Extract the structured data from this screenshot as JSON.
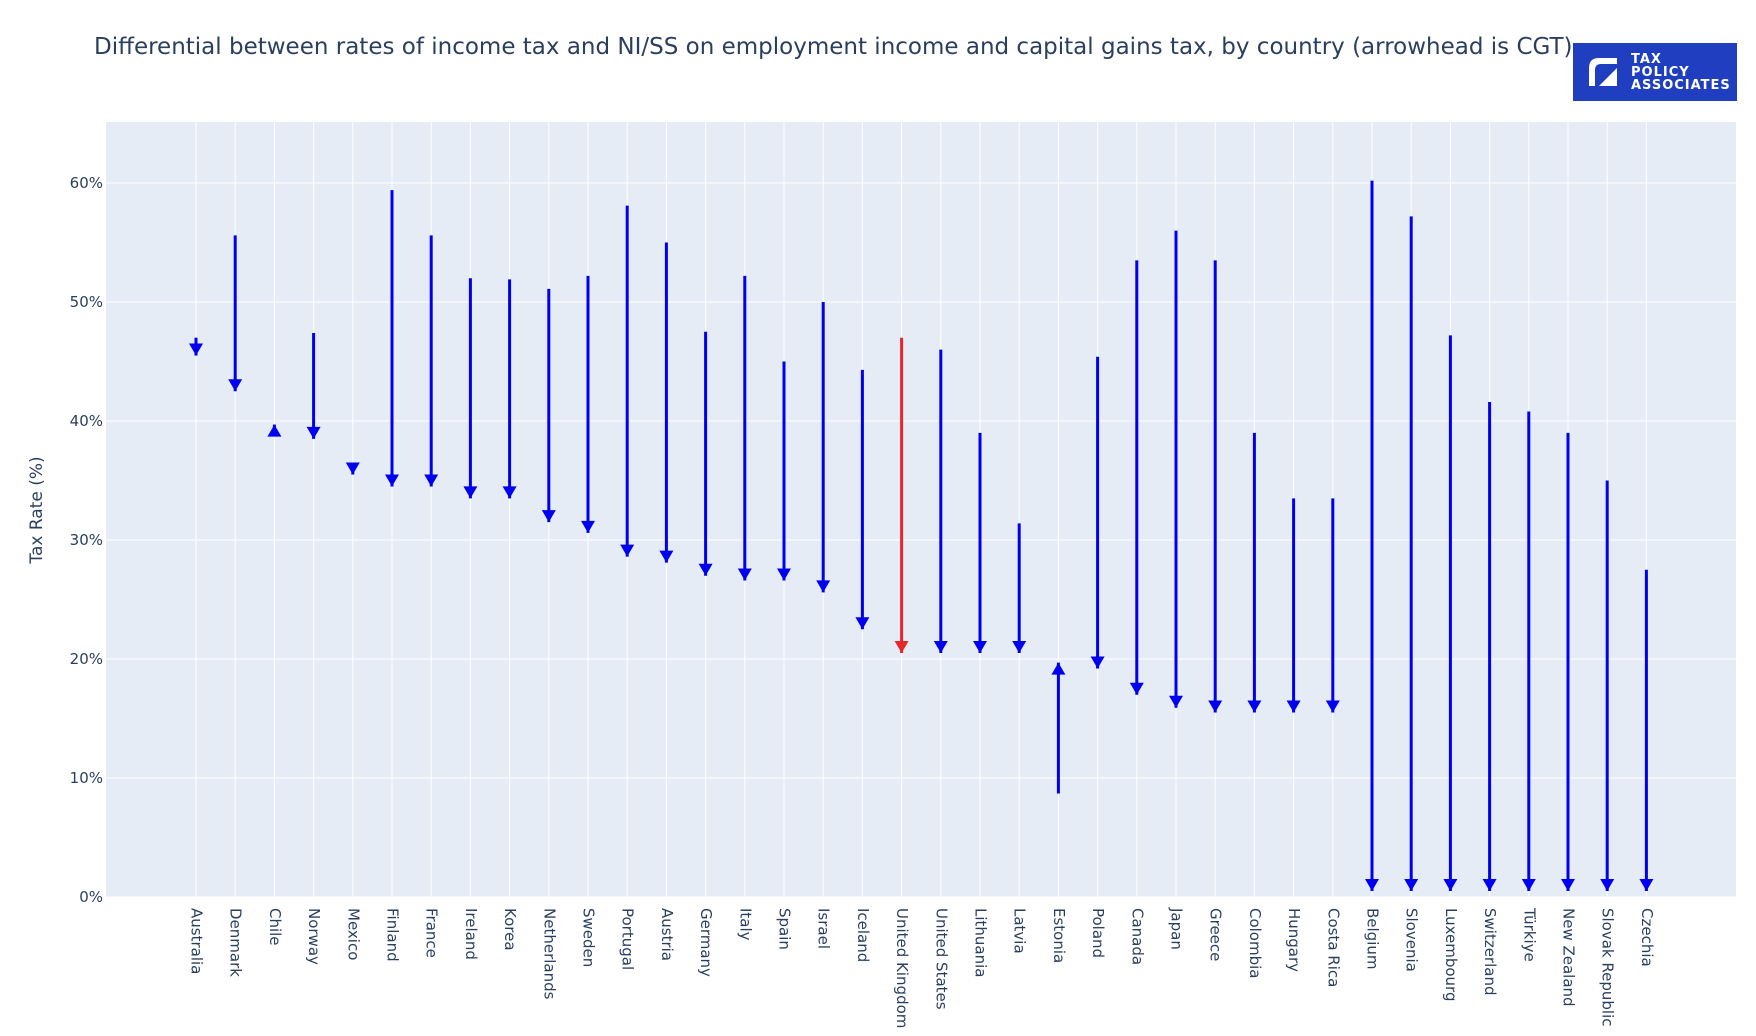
{
  "header": {
    "title": "Differential between rates of income tax and NI/SS on employment income and capital gains tax, by country (arrowhead is CGT)",
    "logo": {
      "line1": "TAX",
      "line2": "POLICY",
      "line3": "ASSOCIATES",
      "bg_color": "#1f3fc0"
    }
  },
  "chart_data": {
    "type": "arrow",
    "ylabel": "Tax Rate (%)",
    "ylim": [
      0,
      65
    ],
    "yticks": [
      0,
      10,
      20,
      30,
      40,
      50,
      60
    ],
    "ytick_labels": [
      "0%",
      "10%",
      "20%",
      "30%",
      "40%",
      "50%",
      "60%"
    ],
    "grid": true,
    "colors": {
      "default": "#0000ee",
      "highlight": "#e8262a",
      "plot_bg": "#e5ecf6",
      "grid": "#ffffff"
    },
    "points": [
      {
        "country": "Australia",
        "income": 47.0,
        "cgt": 45.5,
        "highlight": false
      },
      {
        "country": "Denmark",
        "income": 55.6,
        "cgt": 42.5,
        "highlight": false
      },
      {
        "country": "Chile",
        "income": 39.0,
        "cgt": 39.7,
        "highlight": false
      },
      {
        "country": "Norway",
        "income": 47.4,
        "cgt": 38.5,
        "highlight": false
      },
      {
        "country": "Mexico",
        "income": 36.0,
        "cgt": 35.5,
        "highlight": false
      },
      {
        "country": "Finland",
        "income": 59.4,
        "cgt": 34.5,
        "highlight": false
      },
      {
        "country": "France",
        "income": 55.6,
        "cgt": 34.5,
        "highlight": false
      },
      {
        "country": "Ireland",
        "income": 52.0,
        "cgt": 33.5,
        "highlight": false
      },
      {
        "country": "Korea",
        "income": 51.9,
        "cgt": 33.5,
        "highlight": false
      },
      {
        "country": "Netherlands",
        "income": 51.1,
        "cgt": 31.5,
        "highlight": false
      },
      {
        "country": "Sweden",
        "income": 52.2,
        "cgt": 30.6,
        "highlight": false
      },
      {
        "country": "Portugal",
        "income": 58.1,
        "cgt": 28.6,
        "highlight": false
      },
      {
        "country": "Austria",
        "income": 55.0,
        "cgt": 28.1,
        "highlight": false
      },
      {
        "country": "Germany",
        "income": 47.5,
        "cgt": 27.0,
        "highlight": false
      },
      {
        "country": "Italy",
        "income": 52.2,
        "cgt": 26.6,
        "highlight": false
      },
      {
        "country": "Spain",
        "income": 45.0,
        "cgt": 26.6,
        "highlight": false
      },
      {
        "country": "Israel",
        "income": 50.0,
        "cgt": 25.6,
        "highlight": false
      },
      {
        "country": "Iceland",
        "income": 44.3,
        "cgt": 22.5,
        "highlight": false
      },
      {
        "country": "United Kingdom",
        "income": 47.0,
        "cgt": 20.5,
        "highlight": true
      },
      {
        "country": "United States",
        "income": 46.0,
        "cgt": 20.5,
        "highlight": false
      },
      {
        "country": "Lithuania",
        "income": 39.0,
        "cgt": 20.5,
        "highlight": false
      },
      {
        "country": "Latvia",
        "income": 31.4,
        "cgt": 20.5,
        "highlight": false
      },
      {
        "country": "Estonia",
        "income": 8.7,
        "cgt": 19.7,
        "highlight": false
      },
      {
        "country": "Poland",
        "income": 45.4,
        "cgt": 19.2,
        "highlight": false
      },
      {
        "country": "Canada",
        "income": 53.5,
        "cgt": 17.0,
        "highlight": false
      },
      {
        "country": "Japan",
        "income": 56.0,
        "cgt": 15.9,
        "highlight": false
      },
      {
        "country": "Greece",
        "income": 53.5,
        "cgt": 15.5,
        "highlight": false
      },
      {
        "country": "Colombia",
        "income": 39.0,
        "cgt": 15.5,
        "highlight": false
      },
      {
        "country": "Hungary",
        "income": 33.5,
        "cgt": 15.5,
        "highlight": false
      },
      {
        "country": "Costa Rica",
        "income": 33.5,
        "cgt": 15.5,
        "highlight": false
      },
      {
        "country": "Belgium",
        "income": 60.2,
        "cgt": 0.5,
        "highlight": false
      },
      {
        "country": "Slovenia",
        "income": 57.2,
        "cgt": 0.5,
        "highlight": false
      },
      {
        "country": "Luxembourg",
        "income": 47.2,
        "cgt": 0.5,
        "highlight": false
      },
      {
        "country": "Switzerland",
        "income": 41.6,
        "cgt": 0.5,
        "highlight": false
      },
      {
        "country": "Türkiye",
        "income": 40.8,
        "cgt": 0.5,
        "highlight": false
      },
      {
        "country": "New Zealand",
        "income": 39.0,
        "cgt": 0.5,
        "highlight": false
      },
      {
        "country": "Slovak Republic",
        "income": 35.0,
        "cgt": 0.5,
        "highlight": false
      },
      {
        "country": "Czechia",
        "income": 27.5,
        "cgt": 0.5,
        "highlight": false
      }
    ]
  }
}
